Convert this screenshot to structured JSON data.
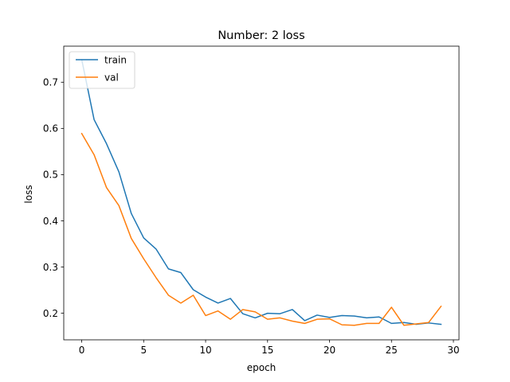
{
  "chart_data": {
    "type": "line",
    "title": "Number: 2 loss",
    "xlabel": "epoch",
    "ylabel": "loss",
    "xlim": [
      -1.45,
      30.45
    ],
    "ylim": [
      0.1425,
      0.778
    ],
    "xticks": [
      0,
      5,
      10,
      15,
      20,
      25,
      30
    ],
    "xtick_labels": [
      "0",
      "5",
      "10",
      "15",
      "20",
      "25",
      "30"
    ],
    "yticks": [
      0.2,
      0.3,
      0.4,
      0.5,
      0.6,
      0.7
    ],
    "ytick_labels": [
      "0.2",
      "0.3",
      "0.4",
      "0.5",
      "0.6",
      "0.7"
    ],
    "grid": false,
    "legend": "upper-left",
    "x": [
      0,
      1,
      2,
      3,
      4,
      5,
      6,
      7,
      8,
      9,
      10,
      11,
      12,
      13,
      14,
      15,
      16,
      17,
      18,
      19,
      20,
      21,
      22,
      23,
      24,
      25,
      26,
      27,
      28,
      29
    ],
    "series": [
      {
        "name": "train",
        "color": "#1f77b4",
        "values": [
          0.749,
          0.619,
          0.567,
          0.506,
          0.416,
          0.363,
          0.339,
          0.296,
          0.288,
          0.251,
          0.235,
          0.222,
          0.232,
          0.199,
          0.19,
          0.2,
          0.199,
          0.208,
          0.184,
          0.196,
          0.191,
          0.195,
          0.194,
          0.19,
          0.192,
          0.178,
          0.18,
          0.176,
          0.179,
          0.176
        ]
      },
      {
        "name": "val",
        "color": "#ff7f0e",
        "values": [
          0.589,
          0.543,
          0.472,
          0.433,
          0.362,
          0.318,
          0.277,
          0.239,
          0.222,
          0.239,
          0.195,
          0.205,
          0.187,
          0.208,
          0.203,
          0.187,
          0.19,
          0.183,
          0.178,
          0.187,
          0.188,
          0.175,
          0.174,
          0.178,
          0.178,
          0.213,
          0.174,
          0.177,
          0.18,
          0.215
        ]
      }
    ]
  }
}
